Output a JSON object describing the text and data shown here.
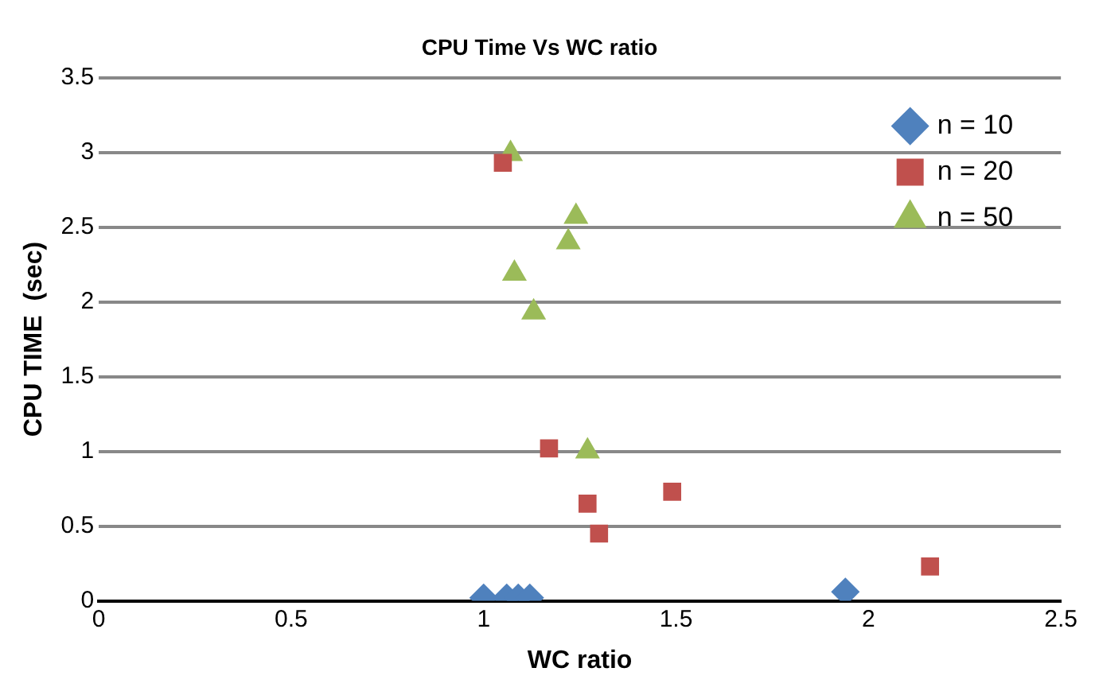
{
  "chart_data": {
    "type": "scatter",
    "title": "CPU Time Vs WC ratio",
    "xlabel": "WC ratio",
    "ylabel": "CPU TIME  (sec)",
    "xlim": [
      0,
      2.5
    ],
    "xticks": [
      0,
      0.5,
      1,
      1.5,
      2,
      2.5
    ],
    "ylim": [
      0,
      3.5
    ],
    "yticks": [
      0,
      0.5,
      1,
      1.5,
      2,
      2.5,
      3,
      3.5
    ],
    "grid": "y",
    "legend": "top right",
    "series": [
      {
        "name": "n = 10",
        "color": "#4f81bd",
        "marker": "diamond",
        "x": [
          1.0,
          1.06,
          1.09,
          1.12,
          1.94
        ],
        "values": [
          0.02,
          0.02,
          0.02,
          0.02,
          0.06
        ]
      },
      {
        "name": "n = 20",
        "color": "#c0504d",
        "marker": "square",
        "x": [
          1.05,
          1.17,
          1.27,
          1.3,
          1.49,
          2.16
        ],
        "values": [
          2.93,
          1.02,
          0.65,
          0.45,
          0.73,
          0.23
        ]
      },
      {
        "name": "n = 50",
        "color": "#9bbb59",
        "marker": "triangle",
        "x": [
          1.07,
          1.24,
          1.22,
          1.08,
          1.13,
          1.27
        ],
        "values": [
          2.99,
          2.57,
          2.4,
          2.19,
          1.93,
          1.0
        ]
      }
    ]
  }
}
